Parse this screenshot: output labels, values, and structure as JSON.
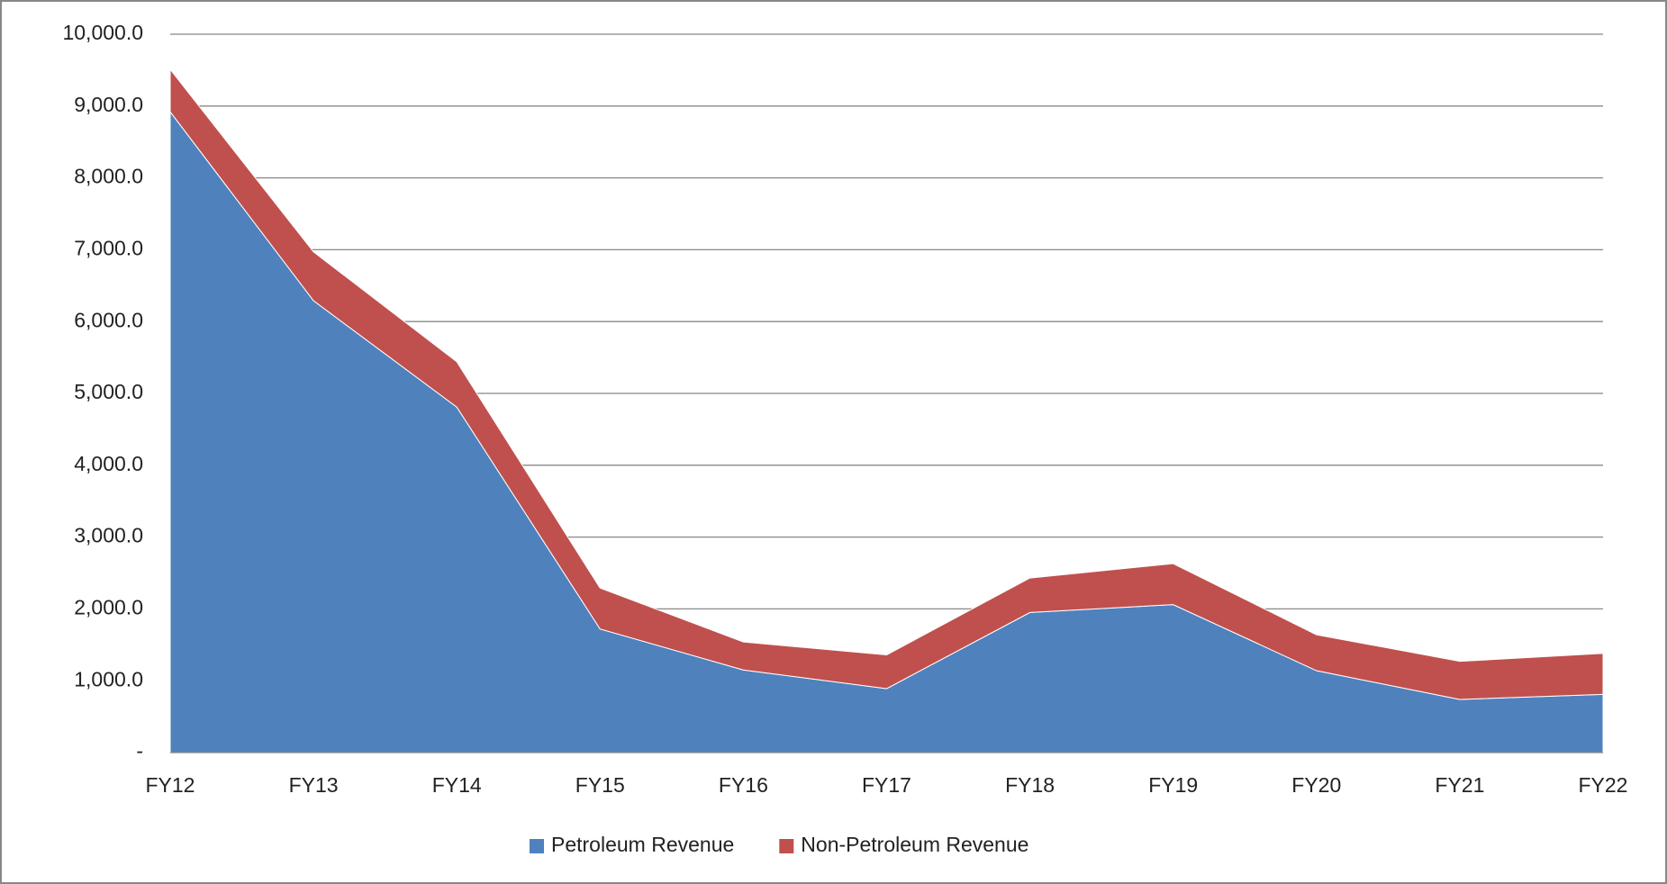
{
  "chart_data": {
    "type": "stacked-area",
    "categories": [
      "FY12",
      "FY13",
      "FY14",
      "FY15",
      "FY16",
      "FY17",
      "FY18",
      "FY19",
      "FY20",
      "FY21",
      "FY22"
    ],
    "series": [
      {
        "name": "Petroleum Revenue",
        "color": "#4f81bd",
        "values": [
          8920,
          6290,
          4810,
          1720,
          1150,
          890,
          1950,
          2060,
          1140,
          740,
          810
        ]
      },
      {
        "name": "Non-Petroleum Revenue",
        "color": "#c0504d",
        "values": [
          590,
          680,
          630,
          570,
          390,
          470,
          480,
          570,
          500,
          530,
          570
        ]
      }
    ],
    "ylim": [
      0,
      10000
    ],
    "yticks": [
      {
        "value": 0,
        "label": "-"
      },
      {
        "value": 1000,
        "label": "1,000.0"
      },
      {
        "value": 2000,
        "label": "2,000.0"
      },
      {
        "value": 3000,
        "label": "3,000.0"
      },
      {
        "value": 4000,
        "label": "4,000.0"
      },
      {
        "value": 5000,
        "label": "5,000.0"
      },
      {
        "value": 6000,
        "label": "6,000.0"
      },
      {
        "value": 7000,
        "label": "7,000.0"
      },
      {
        "value": 8000,
        "label": "8,000.0"
      },
      {
        "value": 9000,
        "label": "9,000.0"
      },
      {
        "value": 10000,
        "label": "10,000.0"
      }
    ],
    "grid": true,
    "legend": "bottom"
  }
}
